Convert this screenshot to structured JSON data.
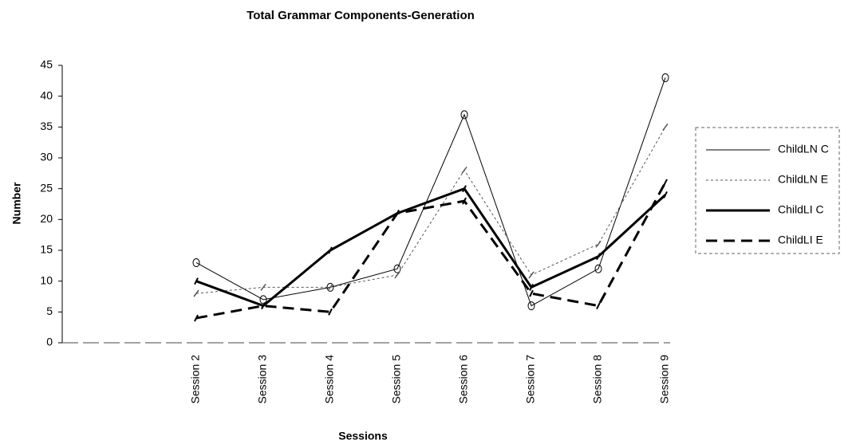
{
  "chart_data": {
    "type": "line",
    "title": "Total Grammar Components-Generation",
    "y_label": "Number",
    "x_label": "Sessions",
    "categories": [
      null,
      null,
      "Session 2",
      "Session 3",
      "Session 4",
      "Session 5",
      "Session 6",
      "Session 7",
      "Session 8",
      "Session 9"
    ],
    "series": [
      {
        "name": "ChildLN C",
        "color": "#000000",
        "width": 1,
        "dash": "",
        "marker": "circle",
        "values": [
          null,
          null,
          13,
          7,
          9,
          12,
          37,
          6,
          12,
          43
        ]
      },
      {
        "name": "ChildLN E",
        "color": "#555555",
        "width": 1,
        "dash": "3 3",
        "marker": "x",
        "values": [
          null,
          null,
          8,
          9,
          9,
          11,
          28,
          11,
          16,
          35
        ]
      },
      {
        "name": "ChildLI C",
        "color": "#000000",
        "width": 3,
        "dash": "",
        "marker": "tick",
        "values": [
          null,
          null,
          10,
          6,
          15,
          21,
          25,
          9,
          14,
          24
        ]
      },
      {
        "name": "ChildLI E",
        "color": "#000000",
        "width": 3,
        "dash": "14 8",
        "marker": "tick",
        "values": [
          null,
          null,
          4,
          6,
          5,
          21,
          23,
          8,
          6,
          26
        ]
      }
    ],
    "ylim": [
      0,
      45
    ],
    "yticks": [
      0,
      5,
      10,
      15,
      20,
      25,
      30,
      35,
      40,
      45
    ],
    "grid": false,
    "legend": "right"
  }
}
